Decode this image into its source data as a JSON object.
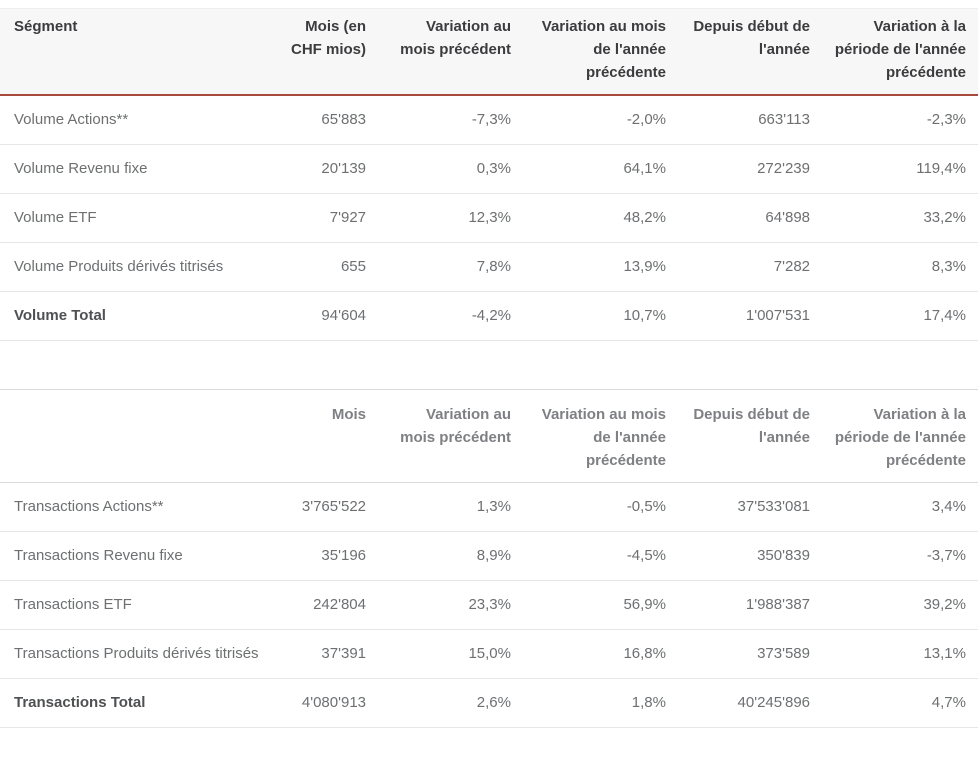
{
  "colors": {
    "header_band_bg": "#f7f7f8",
    "header_text": "#3c3c3e",
    "accent_rule": "#a84a3b",
    "row_divider": "#e6e6e8",
    "body_text": "#6d6f71",
    "secondary_header_text": "#7f8084"
  },
  "volume_table": {
    "headers": [
      "Ségment",
      "Mois (en CHF mios)",
      "Variation au mois précédent",
      "Variation au mois de l'année précédente",
      "Depuis début de l'année",
      "Variation à la période de l'année précédente"
    ],
    "rows": [
      {
        "label": "Volume Actions**",
        "values": [
          "65'883",
          "-7,3%",
          "-2,0%",
          "663'113",
          "-2,3%"
        ]
      },
      {
        "label": "Volume Revenu fixe",
        "values": [
          "20'139",
          "0,3%",
          "64,1%",
          "272'239",
          "119,4%"
        ]
      },
      {
        "label": "Volume ETF",
        "values": [
          "7'927",
          "12,3%",
          "48,2%",
          "64'898",
          "33,2%"
        ]
      },
      {
        "label": "Volume Produits dérivés titrisés",
        "values": [
          "655",
          "7,8%",
          "13,9%",
          "7'282",
          "8,3%"
        ]
      },
      {
        "label": "Volume Total",
        "values": [
          "94'604",
          "-4,2%",
          "10,7%",
          "1'007'531",
          "17,4%"
        ]
      }
    ]
  },
  "transactions_table": {
    "headers": [
      "",
      "Mois",
      "Variation au mois précédent",
      "Variation au mois de l'année précédente",
      "Depuis début de l'année",
      "Variation à la période de l'année précédente"
    ],
    "rows": [
      {
        "label": "Transactions Actions**",
        "values": [
          "3'765'522",
          "1,3%",
          "-0,5%",
          "37'533'081",
          "3,4%"
        ]
      },
      {
        "label": "Transactions Revenu fixe",
        "values": [
          "35'196",
          "8,9%",
          "-4,5%",
          "350'839",
          "-3,7%"
        ]
      },
      {
        "label": "Transactions ETF",
        "values": [
          "242'804",
          "23,3%",
          "56,9%",
          "1'988'387",
          "39,2%"
        ]
      },
      {
        "label": "Transactions Produits dérivés titrisés",
        "values": [
          "37'391",
          "15,0%",
          "16,8%",
          "373'589",
          "13,1%"
        ]
      },
      {
        "label": "Transactions Total",
        "values": [
          "4'080'913",
          "2,6%",
          "1,8%",
          "40'245'896",
          "4,7%"
        ]
      }
    ]
  }
}
